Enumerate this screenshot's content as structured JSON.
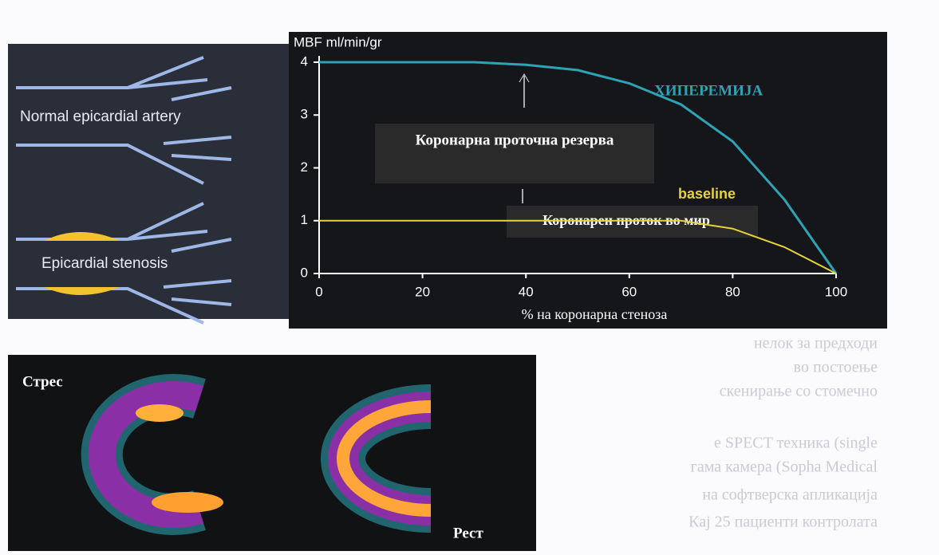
{
  "document": {
    "text_lines": [
      "нелок за предходи",
      "во постоење",
      "скенирање со стомечно",
      "е SPECT техника (single",
      "гама камера (Sopha Medical",
      "на софтверска апликација",
      "Кај 25 пациенти контролата"
    ]
  },
  "figure_left": {
    "labels": [
      "Normal epicardial artery",
      "Epicardial stenosis"
    ]
  },
  "chart_data": {
    "type": "line",
    "ylabel": "MBF ml/min/gr",
    "xlabel": "% на коронарна стеноза",
    "x": [
      0,
      10,
      20,
      30,
      40,
      50,
      60,
      70,
      80,
      90,
      100
    ],
    "series": [
      {
        "name": "ХИПЕРЕМИЈА",
        "color": "#2ea3b5",
        "values": [
          4,
          4,
          4,
          4,
          3.95,
          3.85,
          3.6,
          3.2,
          2.5,
          1.4,
          0
        ]
      },
      {
        "name": "baseline",
        "color": "#e8d23a",
        "values": [
          1,
          1,
          1,
          1,
          1,
          1,
          1,
          1,
          0.85,
          0.5,
          0
        ]
      }
    ],
    "annotations": [
      "Коронарна проточна резерва",
      "Коронарен проток во мир"
    ],
    "xlim": [
      0,
      100
    ],
    "xticks": [
      0,
      20,
      40,
      60,
      80,
      100
    ],
    "ylim": [
      0,
      4
    ],
    "yticks": [
      0,
      1,
      2,
      3,
      4
    ]
  },
  "figure_bottom": {
    "labels": [
      "Стрес",
      "Рест"
    ]
  }
}
